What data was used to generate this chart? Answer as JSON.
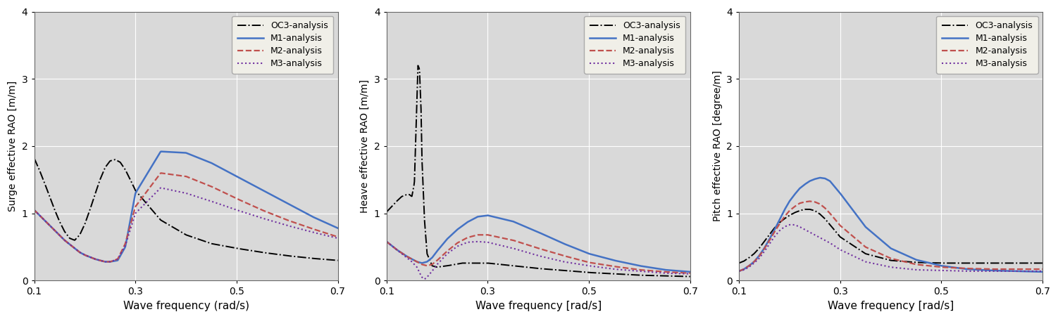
{
  "xlim": [
    0.1,
    0.7
  ],
  "ylim": [
    0,
    4
  ],
  "yticks": [
    0,
    1,
    2,
    3,
    4
  ],
  "xticks": [
    0.1,
    0.3,
    0.5,
    0.7
  ],
  "surge_ylabel": "Surge effective RAO [m/m]",
  "heave_ylabel": "Heave effective RAO [m/m]",
  "pitch_ylabel": "Pitch effective RAO [degree/m]",
  "surge_xlabel": "Wave frequency (rad/s)",
  "heave_xlabel": "Wave frequency [rad/s]",
  "pitch_xlabel": "Wave frequency [rad/s]",
  "bg_color": "#D9D9D9",
  "grid_color": "#FFFFFF",
  "surge": {
    "OC3": {
      "x": [
        0.1,
        0.11,
        0.12,
        0.13,
        0.14,
        0.15,
        0.16,
        0.17,
        0.18,
        0.19,
        0.2,
        0.21,
        0.22,
        0.23,
        0.24,
        0.25,
        0.26,
        0.27,
        0.28,
        0.29,
        0.3,
        0.35,
        0.4,
        0.45,
        0.5,
        0.55,
        0.6,
        0.65,
        0.7
      ],
      "y": [
        1.82,
        1.65,
        1.46,
        1.26,
        1.06,
        0.88,
        0.73,
        0.63,
        0.6,
        0.68,
        0.84,
        1.05,
        1.28,
        1.5,
        1.68,
        1.78,
        1.8,
        1.76,
        1.65,
        1.5,
        1.34,
        0.9,
        0.68,
        0.55,
        0.48,
        0.42,
        0.37,
        0.33,
        0.3
      ]
    },
    "M1": {
      "x": [
        0.1,
        0.12,
        0.14,
        0.16,
        0.18,
        0.19,
        0.2,
        0.21,
        0.22,
        0.23,
        0.24,
        0.25,
        0.265,
        0.28,
        0.3,
        0.35,
        0.4,
        0.45,
        0.5,
        0.55,
        0.6,
        0.65,
        0.7
      ],
      "y": [
        1.05,
        0.9,
        0.75,
        0.6,
        0.48,
        0.42,
        0.38,
        0.35,
        0.32,
        0.3,
        0.28,
        0.28,
        0.3,
        0.5,
        1.3,
        1.92,
        1.9,
        1.75,
        1.55,
        1.35,
        1.15,
        0.95,
        0.78
      ]
    },
    "M2": {
      "x": [
        0.1,
        0.12,
        0.14,
        0.16,
        0.18,
        0.19,
        0.2,
        0.21,
        0.22,
        0.23,
        0.24,
        0.25,
        0.265,
        0.28,
        0.3,
        0.35,
        0.4,
        0.45,
        0.5,
        0.55,
        0.6,
        0.65,
        0.7
      ],
      "y": [
        1.05,
        0.9,
        0.75,
        0.6,
        0.48,
        0.42,
        0.38,
        0.35,
        0.32,
        0.3,
        0.28,
        0.28,
        0.32,
        0.55,
        1.1,
        1.6,
        1.55,
        1.4,
        1.22,
        1.05,
        0.9,
        0.77,
        0.65
      ]
    },
    "M3": {
      "x": [
        0.1,
        0.12,
        0.14,
        0.16,
        0.18,
        0.19,
        0.2,
        0.21,
        0.22,
        0.23,
        0.24,
        0.25,
        0.265,
        0.28,
        0.3,
        0.35,
        0.4,
        0.45,
        0.5,
        0.55,
        0.6,
        0.65,
        0.7
      ],
      "y": [
        1.05,
        0.9,
        0.75,
        0.6,
        0.48,
        0.42,
        0.38,
        0.35,
        0.32,
        0.3,
        0.28,
        0.28,
        0.32,
        0.52,
        1.0,
        1.38,
        1.3,
        1.18,
        1.05,
        0.93,
        0.82,
        0.72,
        0.63
      ]
    }
  },
  "heave": {
    "OC3": {
      "x": [
        0.1,
        0.11,
        0.12,
        0.13,
        0.14,
        0.145,
        0.15,
        0.155,
        0.158,
        0.162,
        0.165,
        0.168,
        0.17,
        0.175,
        0.18,
        0.19,
        0.2,
        0.22,
        0.25,
        0.3,
        0.35,
        0.4,
        0.5,
        0.6,
        0.7
      ],
      "y": [
        1.02,
        1.1,
        1.18,
        1.25,
        1.28,
        1.28,
        1.25,
        1.45,
        2.2,
        3.2,
        3.15,
        2.6,
        1.8,
        0.9,
        0.4,
        0.22,
        0.2,
        0.22,
        0.26,
        0.26,
        0.22,
        0.18,
        0.12,
        0.08,
        0.06
      ]
    },
    "M1": {
      "x": [
        0.1,
        0.11,
        0.12,
        0.13,
        0.14,
        0.15,
        0.16,
        0.17,
        0.18,
        0.19,
        0.2,
        0.22,
        0.24,
        0.26,
        0.28,
        0.3,
        0.35,
        0.4,
        0.45,
        0.5,
        0.55,
        0.6,
        0.65,
        0.7
      ],
      "y": [
        0.58,
        0.52,
        0.46,
        0.41,
        0.36,
        0.32,
        0.28,
        0.26,
        0.28,
        0.34,
        0.44,
        0.62,
        0.76,
        0.87,
        0.95,
        0.97,
        0.88,
        0.72,
        0.55,
        0.4,
        0.3,
        0.22,
        0.16,
        0.13
      ]
    },
    "M2": {
      "x": [
        0.1,
        0.11,
        0.12,
        0.13,
        0.14,
        0.15,
        0.16,
        0.17,
        0.18,
        0.19,
        0.2,
        0.22,
        0.24,
        0.26,
        0.28,
        0.3,
        0.35,
        0.4,
        0.45,
        0.5,
        0.55,
        0.6,
        0.65,
        0.7
      ],
      "y": [
        0.58,
        0.52,
        0.46,
        0.41,
        0.36,
        0.32,
        0.28,
        0.24,
        0.22,
        0.24,
        0.3,
        0.44,
        0.56,
        0.64,
        0.68,
        0.68,
        0.6,
        0.48,
        0.37,
        0.27,
        0.21,
        0.16,
        0.13,
        0.11
      ]
    },
    "M3": {
      "x": [
        0.1,
        0.11,
        0.12,
        0.13,
        0.14,
        0.15,
        0.16,
        0.165,
        0.17,
        0.175,
        0.18,
        0.19,
        0.2,
        0.22,
        0.24,
        0.26,
        0.28,
        0.3,
        0.35,
        0.4,
        0.45,
        0.5,
        0.55,
        0.6,
        0.65,
        0.7
      ],
      "y": [
        0.58,
        0.52,
        0.46,
        0.4,
        0.34,
        0.28,
        0.2,
        0.12,
        0.05,
        0.02,
        0.05,
        0.14,
        0.24,
        0.4,
        0.51,
        0.57,
        0.58,
        0.57,
        0.48,
        0.37,
        0.28,
        0.22,
        0.17,
        0.14,
        0.11,
        0.1
      ]
    }
  },
  "pitch": {
    "OC3": {
      "x": [
        0.1,
        0.11,
        0.12,
        0.13,
        0.14,
        0.15,
        0.16,
        0.17,
        0.18,
        0.19,
        0.2,
        0.21,
        0.22,
        0.23,
        0.24,
        0.25,
        0.26,
        0.27,
        0.28,
        0.3,
        0.35,
        0.4,
        0.45,
        0.5,
        0.55,
        0.6,
        0.65,
        0.7
      ],
      "y": [
        0.26,
        0.29,
        0.34,
        0.4,
        0.48,
        0.58,
        0.68,
        0.78,
        0.86,
        0.92,
        0.97,
        1.01,
        1.04,
        1.06,
        1.06,
        1.04,
        0.99,
        0.92,
        0.83,
        0.65,
        0.4,
        0.3,
        0.27,
        0.26,
        0.26,
        0.26,
        0.26,
        0.26
      ]
    },
    "M1": {
      "x": [
        0.1,
        0.11,
        0.12,
        0.13,
        0.14,
        0.15,
        0.16,
        0.17,
        0.18,
        0.19,
        0.2,
        0.21,
        0.22,
        0.23,
        0.24,
        0.25,
        0.26,
        0.27,
        0.28,
        0.3,
        0.35,
        0.4,
        0.45,
        0.5,
        0.55,
        0.6,
        0.65,
        0.7
      ],
      "y": [
        0.14,
        0.17,
        0.22,
        0.28,
        0.37,
        0.48,
        0.61,
        0.75,
        0.9,
        1.05,
        1.18,
        1.28,
        1.37,
        1.43,
        1.48,
        1.51,
        1.53,
        1.52,
        1.48,
        1.3,
        0.8,
        0.48,
        0.31,
        0.22,
        0.17,
        0.15,
        0.14,
        0.13
      ]
    },
    "M2": {
      "x": [
        0.1,
        0.11,
        0.12,
        0.13,
        0.14,
        0.15,
        0.16,
        0.17,
        0.18,
        0.19,
        0.2,
        0.21,
        0.22,
        0.23,
        0.24,
        0.25,
        0.26,
        0.27,
        0.28,
        0.3,
        0.35,
        0.4,
        0.45,
        0.5,
        0.55,
        0.6,
        0.65,
        0.7
      ],
      "y": [
        0.14,
        0.17,
        0.22,
        0.28,
        0.36,
        0.47,
        0.59,
        0.72,
        0.84,
        0.95,
        1.04,
        1.1,
        1.15,
        1.17,
        1.18,
        1.17,
        1.14,
        1.08,
        1.0,
        0.82,
        0.5,
        0.33,
        0.24,
        0.2,
        0.18,
        0.17,
        0.17,
        0.17
      ]
    },
    "M3": {
      "x": [
        0.1,
        0.11,
        0.12,
        0.13,
        0.14,
        0.15,
        0.16,
        0.17,
        0.18,
        0.19,
        0.2,
        0.21,
        0.22,
        0.23,
        0.24,
        0.25,
        0.26,
        0.27,
        0.28,
        0.3,
        0.35,
        0.4,
        0.45,
        0.5,
        0.55,
        0.6,
        0.65,
        0.7
      ],
      "y": [
        0.14,
        0.16,
        0.2,
        0.26,
        0.33,
        0.43,
        0.54,
        0.65,
        0.74,
        0.8,
        0.83,
        0.83,
        0.8,
        0.76,
        0.72,
        0.68,
        0.64,
        0.6,
        0.56,
        0.46,
        0.28,
        0.2,
        0.16,
        0.15,
        0.14,
        0.14,
        0.14,
        0.14
      ]
    }
  }
}
